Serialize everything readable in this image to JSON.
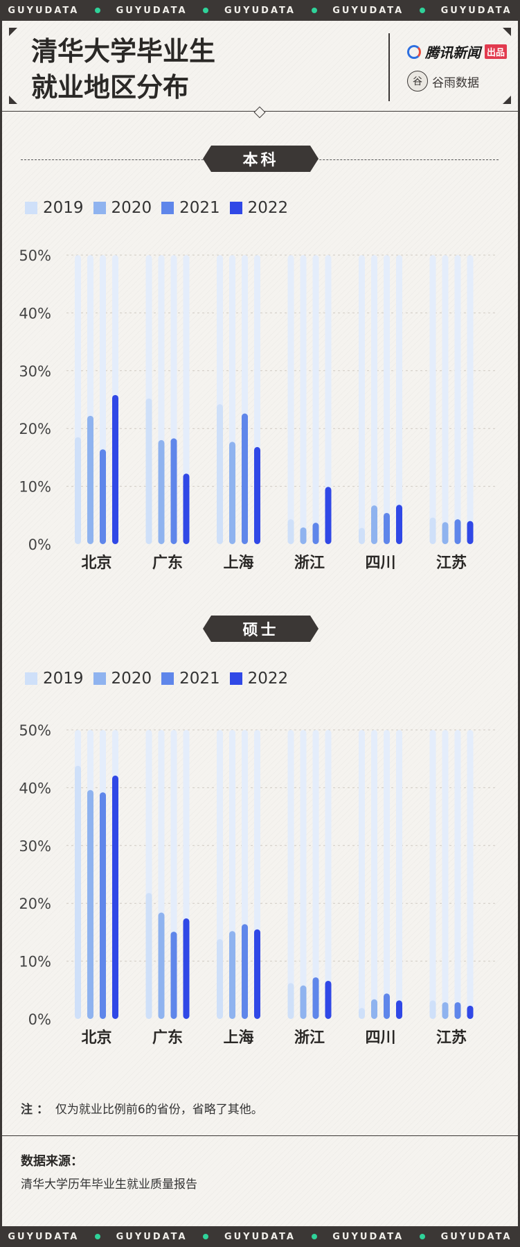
{
  "banner_text": "GUYUDATA",
  "header": {
    "title_line1": "清华大学毕业生",
    "title_line2": "就业地区分布",
    "brand1": "腾讯新闻",
    "brand1_tag": "出品",
    "brand2": "谷雨数据",
    "brand2_mark": "谷"
  },
  "colors": {
    "2019": "#cfe0f9",
    "2020": "#8fb3ef",
    "2021": "#5f86ea",
    "2022": "#3048e6",
    "track": "#e4edfb"
  },
  "chart_data": [
    {
      "type": "bar",
      "title": "本科",
      "categories": [
        "北京",
        "广东",
        "上海",
        "浙江",
        "四川",
        "江苏"
      ],
      "series": [
        {
          "name": "2019",
          "values": [
            18.5,
            25.2,
            24.2,
            4.3,
            2.8,
            4.6
          ]
        },
        {
          "name": "2020",
          "values": [
            22.2,
            18.0,
            17.7,
            2.9,
            6.7,
            3.8
          ]
        },
        {
          "name": "2021",
          "values": [
            16.4,
            18.3,
            22.6,
            3.7,
            5.4,
            4.3
          ]
        },
        {
          "name": "2022",
          "values": [
            25.8,
            12.2,
            16.8,
            9.9,
            6.8,
            4.0
          ]
        }
      ],
      "yticks": [
        "0%",
        "10%",
        "20%",
        "30%",
        "40%",
        "50%"
      ],
      "ylim": [
        0,
        50
      ],
      "xlabel": "",
      "ylabel": "",
      "legend": [
        "2019",
        "2020",
        "2021",
        "2022"
      ]
    },
    {
      "type": "bar",
      "title": "硕士",
      "categories": [
        "北京",
        "广东",
        "上海",
        "浙江",
        "四川",
        "江苏"
      ],
      "series": [
        {
          "name": "2019",
          "values": [
            43.8,
            21.8,
            13.8,
            6.2,
            1.9,
            3.2
          ]
        },
        {
          "name": "2020",
          "values": [
            39.6,
            18.4,
            15.2,
            5.8,
            3.4,
            2.9
          ]
        },
        {
          "name": "2021",
          "values": [
            39.2,
            15.1,
            16.4,
            7.2,
            4.4,
            2.9
          ]
        },
        {
          "name": "2022",
          "values": [
            42.1,
            17.4,
            15.5,
            6.6,
            3.2,
            2.3
          ]
        }
      ],
      "yticks": [
        "0%",
        "10%",
        "20%",
        "30%",
        "40%",
        "50%"
      ],
      "ylim": [
        0,
        50
      ],
      "xlabel": "",
      "ylabel": "",
      "legend": [
        "2019",
        "2020",
        "2021",
        "2022"
      ]
    }
  ],
  "note_label": "注 ：",
  "note_text": "仅为就业比例前6的省份，省略了其他。",
  "source_label": "数据来源：",
  "source_text": "清华大学历年毕业生就业质量报告"
}
